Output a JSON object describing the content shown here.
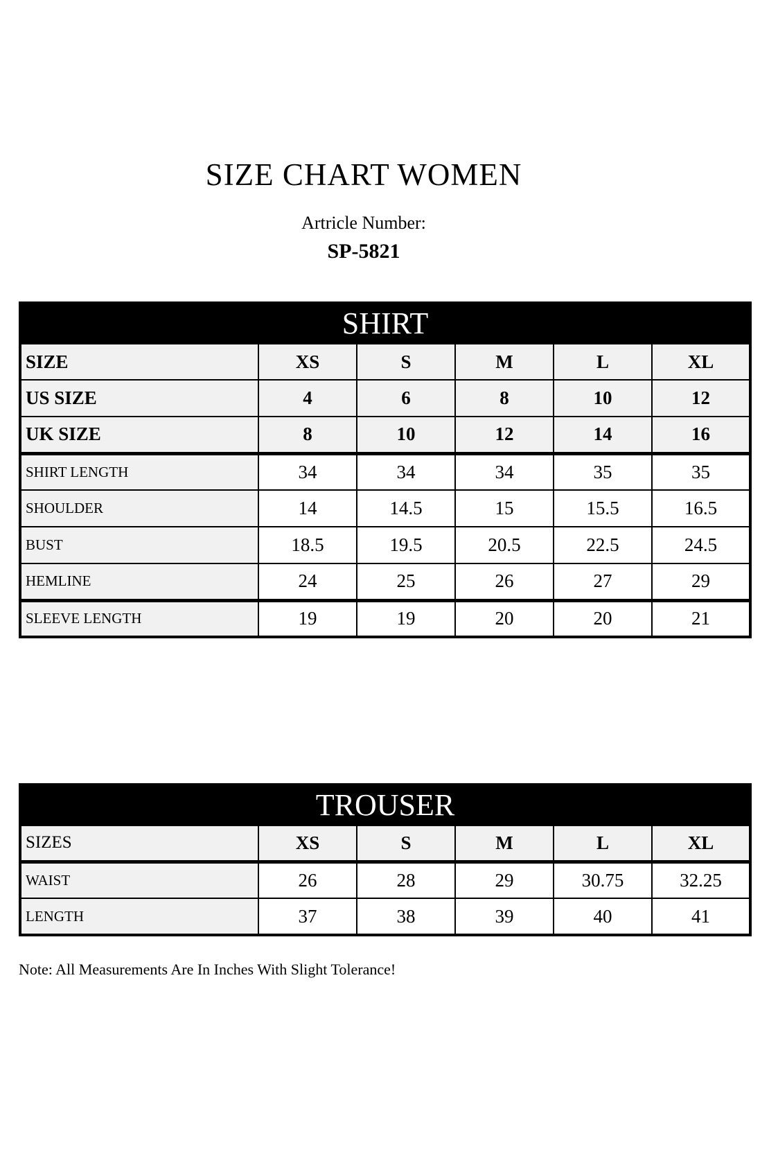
{
  "page": {
    "title": "SIZE CHART WOMEN",
    "article_label": "Artricle Number:",
    "article_number": "SP-5821",
    "note": "Note: All Measurements Are In Inches With Slight Tolerance!"
  },
  "colors": {
    "banner_background": "#000000",
    "banner_text": "#ffffff",
    "header_row_background": "#f1f1f1",
    "cell_background": "#ffffff",
    "border": "#000000",
    "text": "#000000"
  },
  "shirt_table": {
    "header": "SHIRT",
    "size_rows": [
      {
        "label": "SIZE",
        "values": [
          "XS",
          "S",
          "M",
          "L",
          "XL"
        ]
      },
      {
        "label": "US SIZE",
        "values": [
          "4",
          "6",
          "8",
          "10",
          "12"
        ]
      },
      {
        "label": "UK SIZE",
        "values": [
          "8",
          "10",
          "12",
          "14",
          "16"
        ]
      }
    ],
    "measurement_rows": [
      {
        "label": "SHIRT LENGTH",
        "values": [
          "34",
          "34",
          "34",
          "35",
          "35"
        ]
      },
      {
        "label": "SHOULDER",
        "values": [
          "14",
          "14.5",
          "15",
          "15.5",
          "16.5"
        ]
      },
      {
        "label": "BUST",
        "values": [
          "18.5",
          "19.5",
          "20.5",
          "22.5",
          "24.5"
        ]
      },
      {
        "label": "HEMLINE",
        "values": [
          "24",
          "25",
          "26",
          "27",
          "29"
        ]
      },
      {
        "label": "SLEEVE LENGTH",
        "values": [
          "19",
          "19",
          "20",
          "20",
          "21"
        ]
      }
    ]
  },
  "trouser_table": {
    "header": "TROUSER",
    "size_rows": [
      {
        "label": "SIZES",
        "values": [
          "XS",
          "S",
          "M",
          "L",
          "XL"
        ]
      }
    ],
    "measurement_rows": [
      {
        "label": "WAIST",
        "values": [
          "26",
          "28",
          "29",
          "30.75",
          "32.25"
        ]
      },
      {
        "label": "LENGTH",
        "values": [
          "37",
          "38",
          "39",
          "40",
          "41"
        ]
      }
    ]
  }
}
